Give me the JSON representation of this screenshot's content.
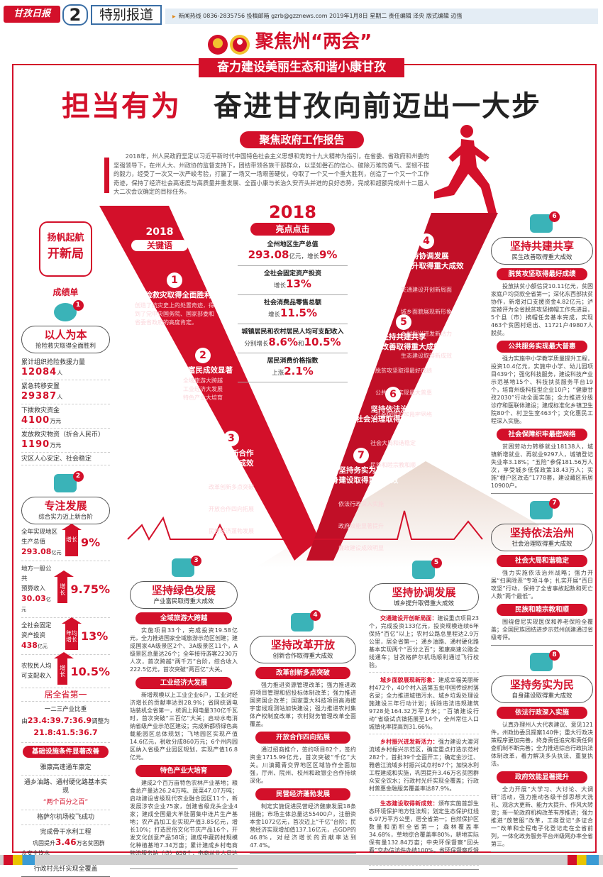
{
  "header": {
    "logo": "甘孜日报",
    "page_number": "2",
    "section": "特别报道",
    "info": "新闻热线 0836-2835756  投稿邮箱 gzrb@gzznews.com   2019年1月8日 星期二  责任编辑 泽央  版式编辑 边强"
  },
  "banner": {
    "title": "聚焦州“两会”",
    "subtitle": "奋力建设美丽生态和谐小康甘孜"
  },
  "headline": {
    "part1": "担当有为",
    "part2": "奋进甘孜向前迈出一大步"
  },
  "report_label": "聚焦政府工作报告",
  "intro": "2018年，州人民政府坚定以习近平新时代中国特色社会主义思想和党的十九大精神为指引，在省委、省政府和州委的坚强领导下，在州人大、州政协的监督支持下，团结带领各族干部群众，以坚如磐石的信心、破除万难的勇气、坚韧不拔的毅力，经受了一次又一次严峻考验，打赢了一场又一场艰苦硬仗，夺取了一个又一个重大胜利，创造了一个又一个工作奇迹，保持了经济社会高速度与高质量并重发展、全面小康与长治久安齐头并进的良好态势，完成和超额完成州十二届人大二次会议确定的目标任务。",
  "keywords": {
    "year": "2018",
    "title": "关键语",
    "items": [
      {
        "num": "1",
        "title": "抢险救灾取得全面胜利",
        "lines": [
          "创造了抗灾史上的处置奇迹，得到了党中央国务院、国家部委和省委省政府的高度肯定。"
        ]
      },
      {
        "num": "2",
        "title": "产业富民成效显著",
        "lines": [
          "全域旅游大跨越",
          "工业经济大发展",
          "特色产业大培育"
        ]
      },
      {
        "num": "3",
        "title": "改革创新合作\n取得重大成效",
        "lines": [
          "改革创新多点突破",
          "开放合作四向拓展",
          "民营经济蓬勃发展"
        ]
      },
      {
        "num": "4",
        "title": "坚持协调发展\n城乡提升取得重大成效",
        "lines": [
          "交通建设开创新局面",
          "城乡面貌展现新形象",
          "乡村振兴迸发新活力",
          "生态建设取得新成效"
        ]
      },
      {
        "num": "5",
        "title": "坚持共建共享\n民生改善取得重大成效",
        "lines": [
          "脱贫攻坚取得最好成绩",
          "公共服务实现最大普惠",
          "社会保障织牢最密网络"
        ]
      },
      {
        "num": "6",
        "title": "坚持依法治州\n社会治理取得重大成效",
        "lines": [
          "社会大局和谐稳定",
          "民族和睦宗教和顺"
        ]
      },
      {
        "num": "7",
        "title": "坚持务实为民\n自身建设取得重大成效",
        "lines": [
          "依法行政深入实施",
          "政府效能显著提升",
          "廉政建设成效明显"
        ]
      }
    ]
  },
  "highlights": {
    "year": "2018",
    "title": "亮点点击",
    "items": [
      {
        "label": "全州地区生产总值",
        "pre": "",
        "v1": "293.08",
        "mid": "亿元，增长",
        "v2": "9%"
      },
      {
        "label": "全社会固定资产投资",
        "pre": "增长",
        "v1": "13%",
        "mid": "",
        "v2": ""
      },
      {
        "label": "社会消费品零售总额",
        "pre": "增长",
        "v1": "11.5%",
        "mid": "",
        "v2": ""
      },
      {
        "label": "城镇居民和农村居民人均可支配收入",
        "pre": "分别增长",
        "v1": "8.6%",
        "mid": "和",
        "v2": "10.5%"
      },
      {
        "label": "居民消费价格指数",
        "pre": "上涨",
        "v1": "2.1%",
        "mid": "",
        "v2": ""
      }
    ]
  },
  "left": {
    "badge": {
      "l1": "扬帆起航",
      "l2": "开新局"
    },
    "scorecard": "成绩单",
    "s1": {
      "num": "1",
      "icon": "globe-refresh-icon",
      "title": "以人为本",
      "sub": "抢险救灾取得全面胜利",
      "stats": [
        {
          "label": "累计组织抢险救援力量",
          "value": "12084",
          "unit": "人"
        },
        {
          "label": "紧急转移安置",
          "value": "29387",
          "unit": "人"
        },
        {
          "label": "下拨救灾资金",
          "value": "4100",
          "unit": "万元"
        },
        {
          "label": "发放救灾物资（折合人民币）",
          "value": "1190",
          "unit": "万元"
        }
      ],
      "last": "灾区人心安定、社会稳定"
    },
    "s2": {
      "num": "2",
      "icon": "hand-box-icon",
      "title": "专注发展",
      "sub": "综合实力迈上新台阶",
      "growth": [
        {
          "l1": "全年实现地区",
          "l2": "生产总值",
          "value": "293.08",
          "unit": "亿元",
          "arrow": "增长",
          "pct": "9%"
        },
        {
          "l1": "地方一般公共",
          "l2": "预算收入",
          "value": "30.03",
          "unit": "亿元",
          "arrow": "增长",
          "pct": "9.75%"
        },
        {
          "l1": "全社会固定",
          "l2": "资产投资",
          "value": "438",
          "unit": "亿元",
          "arrow": "年均增长",
          "pct": "13%"
        },
        {
          "l1": "农牧民人均",
          "l2": "可支配收入",
          "value": "",
          "unit": "",
          "arrow": "增长",
          "pct": "10.5%"
        }
      ],
      "rank": "居全省第一",
      "ratio": {
        "label": "一二三产业比重",
        "from_pre": "由",
        "from": "23.4:39.7:36.9",
        "to_pre": "调整为",
        "to": "21.8:41.5:36.7"
      },
      "infra_tag": "基础设施条件显著改善",
      "infra": [
        "雅康高速通车康定",
        "通乡油路、通村硬化路基本实现",
        "“两个百分之百”",
        "格萨尔机场校飞成功",
        "完成骨干水利工程"
      ],
      "water": {
        "pre": "巩固提升",
        "value": "3.46",
        "post": "万名贫困群众安全饮水"
      },
      "fiber": "行政村光纤实现全覆盖"
    }
  },
  "bottom": [
    {
      "num": "3",
      "icon": "stopwatch-icon",
      "title": "坚持绿色发展",
      "sub": "产业富民取得重大成效",
      "sections": [
        {
          "tag": "全域旅游大跨越",
          "text": "实施项目33个，完成投资19.58亿元，全力推进国家全域旅游示范区创建；建成国家4A级景区2个、3A级景区11个，A级景区总量达26个；全年接待游客2230万人次，首次跨越“两千万”台阶，综合收入222.5亿元，首次突破“两百亿”大关。"
        },
        {
          "tag": "工业经济大发展",
          "text": "新增规模以上工业企业6户，工业对经济增长的贡献率达到28.9%；省网统调电站装机全省第一，统调上网电量330亿千瓦时，首次突破“三百亿”大关；启动水电消纳省级产业示范区建设；完成新都桥绿色高载能园区总体规划；飞地园区实现产值14.6亿元，税收分成860万元；6个州内园区纳入省级产业园区规划，实现产值16.8亿元。"
        },
        {
          "tag": "特色产业大培育",
          "text": "建成2个百万亩特色农林产业基地；粮食总产量达26.24万吨、蔬菜47.07万吨；启动建设省级现代农业融合园区11个，新发展涉农企业75家，创建省级龙头企业4家；建成全国最大羊肚菌集中连片生产基地；农产品加工业实现产值3.85亿元，增长10%；打造民俗文化节庆产品16个，开发文化创意产品58项；建成中藏药材规模化种植基地7.34万亩；累计建成乡村电商物流服务站（点）658个，电商从业人员达8000余人。"
        }
      ]
    },
    {
      "num": "4",
      "icon": "ship-icon",
      "title": "坚持改革开放",
      "sub": "创新合作取得重大成效",
      "sections": [
        {
          "tag": "改革创新多点突破",
          "text": "强力推进资源管理改革；强力推进政府项目管理和招投标体制改革；强力推进国资国企改革；国家重大科技项目高海拔宇宙线观测站加快建设；强力推进农村集体产权制度改革；农村财务管理改革全面覆盖。"
        },
        {
          "tag": "开放合作四向拓展",
          "text": "通过招商推介，签约项目82个，签约资金1715.99亿元，首次突破“千亿”大关。川滇藏青交界地区区域协作全面加强，厅州、院州、校州和政银企合作持续深化。"
        },
        {
          "tag": "民营经济蓬勃发展",
          "text": "制定实施促进民营经济健康发展18条措施；市场主体总量达55400户，注册资本金1072亿元，首次迈上“千亿”台阶；民营经济实现增加值137.16亿元，占GDP的46.8%，对经济增长的贡献率达到47.4%。"
        }
      ]
    },
    {
      "num": "5",
      "icon": "road-icon",
      "title": "坚持协调发展",
      "sub": "城乡提升取得重大成效",
      "sections": [
        {
          "key": "交通建设开创新局面：",
          "text": "建设重点项目23个，完成投资133亿元，投资规模连续6年保持“百亿”以上；农村公路总里程达2.9万公里，居全省第一；通乡油路、通村硬化路基本实现两个“百分之百”；雅康高速公路全线通车；甘孜格萨尔机场顺利通过飞行校验。"
        },
        {
          "key": "城乡面貌展现新形象：",
          "text": "建成幸福美丽新村472个，40个村入选第五批中国传统村落名录；全力推进城镇污水、城乡垃圾处理设施建设三年行动计划；拆除违法违规建筑9728处164.32万平方米；“百镇建设行动”省级试点镇拓展至14个，全州常住人口城镇化率提高到31.66%。"
        },
        {
          "key": "乡村振兴迸发新活力：",
          "text": "强力建设大渡河流域乡村振兴示范区，确定重点打造示范村282个，首批39个全面开工；确定金沙江、雅砻江流域乡村振兴试点村67个；加快水利工程建成和实施，巩固提升3.46万名贫困群众安全饮水；行政村光纤实现全覆盖；行政村普惠金融服务覆盖率达87.9%。"
        },
        {
          "key": "生态建设取得新成效：",
          "text": "颁布实施首部生态环境保护地方性法规；划定生态保护红线6.97万平方公里，居全省第一；自然保护区数量和面积全省第一；森林覆盖率34.68%，草地综合覆盖率80%，耕地实际保有量132.84万亩；中央环保督察“回头看”交办信访件办结100%，省环保督察反馈问题整改完成98.8%，排名全省第二。"
        }
      ]
    }
  ],
  "right": [
    {
      "num": "6",
      "icon": "hands-cube-icon",
      "title": "坚持共建共享",
      "sub": "民生改善取得重大成效",
      "sections": [
        {
          "tag": "脱贫攻坚取得最好成绩",
          "text": "投放扶贫小额信贷10.11亿元，贫困家庭户均贷款全省第一；深化东西部扶贫协作，新增对口支援资金4.82亿元；泸定被评为全省脱贫攻坚摘帽工作先进县，5个县（市）摘帽任务基本完成，实现463个贫困村退出、11721户49807人脱贫。"
        },
        {
          "tag": "公共服务实现最大普惠",
          "text": "强力实施中小学教学质量提升工程，投资10.4亿元，实施中小学、幼儿园项目439个；强化科技服务，建设科技产业示范基地15个、科技扶贫服务平台19个，培育州级科技型企业10户；“健康甘孜2030”行动全面实施；全力推进分级诊疗和医联体建设；建成标准化乡镇卫生院80个、村卫生室463个；文化惠民工程深入实施。"
        },
        {
          "tag": "社会保障织牢最密网络",
          "text": "贫困劳动力转移就业18138人，城镇新增就业、再就业9297人，城镇登记失业率3.18%；“五险”参保181.56万人次，享受城乡低保政策18.43万人；实施“棚户区改造”1778套，建设藏区新居10900户。"
        }
      ]
    },
    {
      "num": "7",
      "icon": "box-icon",
      "title": "坚持依法治州",
      "sub": "社会治理取得重大成效",
      "sections": [
        {
          "tag": "社会大局和谐稳定",
          "text": "强力实施依法治州战略；强力开展“扫黑除恶”专项斗争；扎实开展“百日攻坚”行动，保持了全省事故起数和死亡人数“两个最低”。"
        },
        {
          "tag": "民族和睦宗教和顺",
          "text": "围绕僧尼实现医保和养老保险全覆盖；全国民族团结进步示范州创建通过省级考评。"
        }
      ]
    },
    {
      "num": "8",
      "icon": "hand-flag-icon",
      "title": "坚持务实为民",
      "sub": "自身建设取得重大成效",
      "sections": [
        {
          "tag": "依法行政深入实施",
          "text": "认真办理州人大代表建议、意见121件，州政协委员提案140件；重大行政决策程序更加完善，终身责任追究和责任倒查机制不断完善；全力推进综合行政执法体制改革，着力解决多头执法、重复执法。"
        },
        {
          "tag": "政府效能显著提升",
          "text": "全力开展“大学习、大讨论、大调研”活动，强力推动各级干部思想大洗礼、观念大更新、能力大提升、作风大转变；新一轮政府机构改革有序推进；强力推进“放管服”改革，工商登记“多证合一”改革和全程电子化登记走在全省前列，一体化政务服务平台州级网办率全省第三。"
        }
      ]
    }
  ],
  "colors": {
    "accent": "#d3102a",
    "teal": "#3ab3b8",
    "info_strip": "#e4edf5"
  }
}
